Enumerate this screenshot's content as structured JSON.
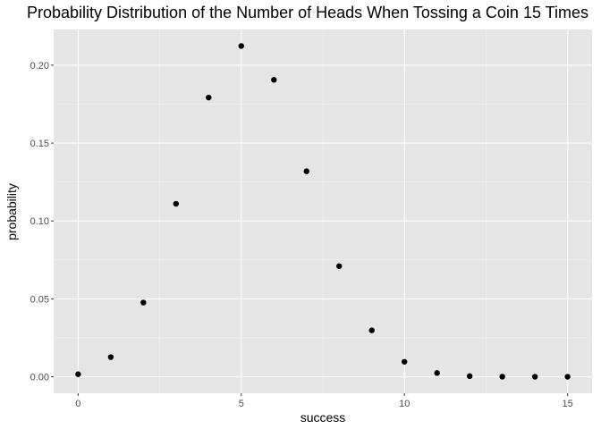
{
  "chart_data": {
    "type": "scatter",
    "title": "Probability Distribution of the Number of Heads When Tossing a Coin 15 Times",
    "xlabel": "success",
    "ylabel": "probability",
    "x": [
      0,
      1,
      2,
      3,
      4,
      5,
      6,
      7,
      8,
      9,
      10,
      11,
      12,
      13,
      14,
      15
    ],
    "y": [
      0.0016,
      0.0126,
      0.0476,
      0.111,
      0.1792,
      0.2123,
      0.1906,
      0.1319,
      0.071,
      0.0298,
      0.0096,
      0.0024,
      0.0004,
      5e-05,
      4e-06,
      3e-07
    ],
    "xlim": [
      -0.75,
      15.75
    ],
    "ylim": [
      -0.0106,
      0.2229
    ],
    "xticks": [
      0,
      5,
      10,
      15
    ],
    "xtick_labels": [
      "0",
      "5",
      "10",
      "15"
    ],
    "yticks": [
      0.0,
      0.05,
      0.1,
      0.15,
      0.2
    ],
    "ytick_labels": [
      "0.00",
      "0.05",
      "0.10",
      "0.15",
      "0.20"
    ],
    "grid": true,
    "colors": {
      "panel_background": "#e5e5e5",
      "grid_major": "#ffffff",
      "grid_minor": "#f2f2f2",
      "point": "#000000",
      "tick_text": "#4d4d4d",
      "tick_mark": "#333333"
    }
  }
}
